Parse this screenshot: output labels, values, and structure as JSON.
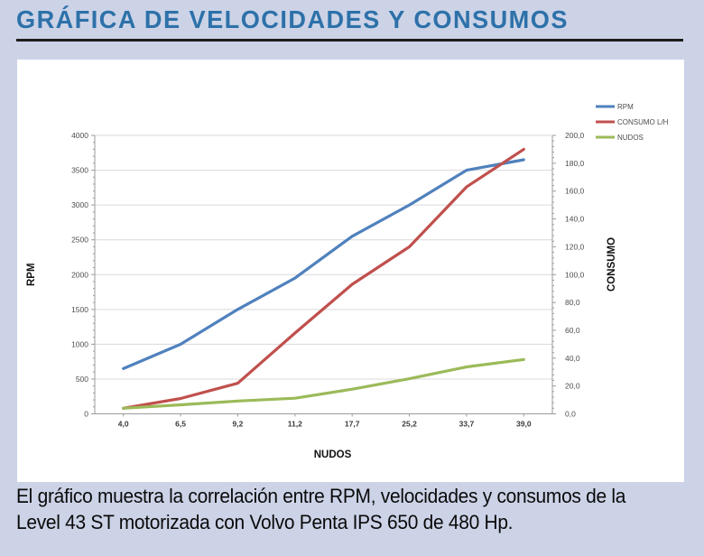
{
  "page": {
    "title": "GRÁFICA DE VELOCIDADES Y CONSUMOS",
    "caption_line1": "El gráfico muestra la correlación entre RPM, velocidades y consumos de la",
    "caption_line2": "Level 43 ST motorizada con Volvo Penta IPS 650 de 480 Hp.",
    "colors": {
      "background": "#ccd3e7",
      "title_text": "#2d71a9",
      "title_rule": "#1c1c1c",
      "panel": "#ffffff",
      "gridline": "#d9d9d9",
      "axis_line": "#9b9b9b",
      "tick_text": "#4d4d4d"
    }
  },
  "chart_data": {
    "type": "line",
    "title": "",
    "categories": [
      "4,0",
      "6,5",
      "9,2",
      "11,2",
      "17,7",
      "25,2",
      "33,7",
      "39,0"
    ],
    "series": [
      {
        "name": "RPM",
        "axis": "left",
        "color": "#4F81BD",
        "values": [
          650,
          1000,
          1500,
          1950,
          2550,
          3000,
          3500,
          3650
        ]
      },
      {
        "name": "CONSUMO L/H",
        "axis": "right",
        "color": "#C0504D",
        "values": [
          4,
          11,
          22,
          58,
          93,
          120,
          163,
          190
        ]
      },
      {
        "name": "NUDOS",
        "axis": "right",
        "color": "#9BBA59",
        "values": [
          4.0,
          6.5,
          9.2,
          11.2,
          17.7,
          25.2,
          33.7,
          39.0
        ]
      }
    ],
    "left_axis": {
      "title": "RPM",
      "min": 0,
      "max": 4000,
      "step": 500,
      "minor_step": 100,
      "tick_labels": [
        "0",
        "500",
        "1000",
        "1500",
        "2000",
        "2500",
        "3000",
        "3500",
        "4000"
      ]
    },
    "right_axis": {
      "title": "CONSUMO",
      "min": 0,
      "max": 200,
      "step": 20,
      "minor_step": 4,
      "tick_labels": [
        "0,0",
        "20,0",
        "40,0",
        "60,0",
        "80,0",
        "100,0",
        "120,0",
        "140,0",
        "160,0",
        "180,0",
        "200,0"
      ]
    },
    "x_axis": {
      "title": "NUDOS"
    },
    "legend": [
      "RPM",
      "CONSUMO L/H",
      "NUDOS"
    ],
    "legend_position": "top-right",
    "grid": true
  }
}
